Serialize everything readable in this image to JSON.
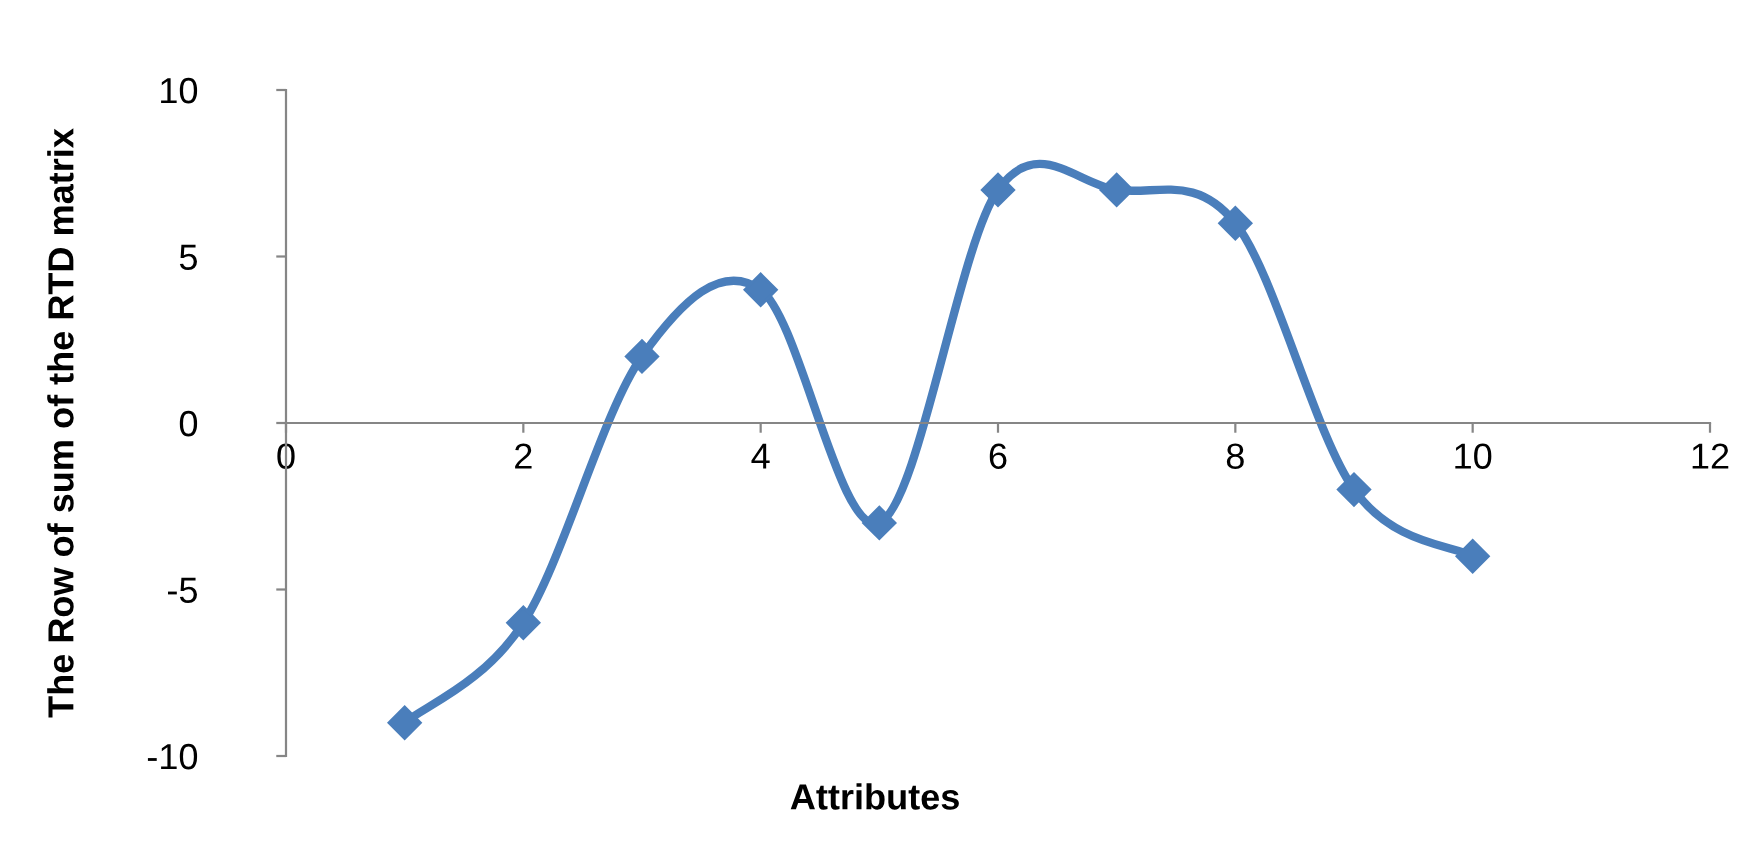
{
  "chart_data": {
    "type": "line",
    "xlabel": "Attributes",
    "ylabel": "The Row of sum of the RTD matrix",
    "x": [
      1,
      2,
      3,
      4,
      5,
      6,
      7,
      8,
      9,
      10
    ],
    "series": [
      {
        "color": "#4a7ebb",
        "values": [
          -9,
          -6,
          2,
          4,
          -3,
          7,
          7,
          6,
          -2,
          -4
        ]
      }
    ],
    "xlim": [
      0,
      12
    ],
    "xticks": [
      0,
      2,
      4,
      6,
      8,
      10,
      12
    ],
    "ylim": [
      -10,
      10
    ],
    "yticks": [
      -10,
      -5,
      0,
      5,
      10
    ],
    "grid": false,
    "legend": false,
    "marker": "diamond",
    "line_style": "solid"
  }
}
